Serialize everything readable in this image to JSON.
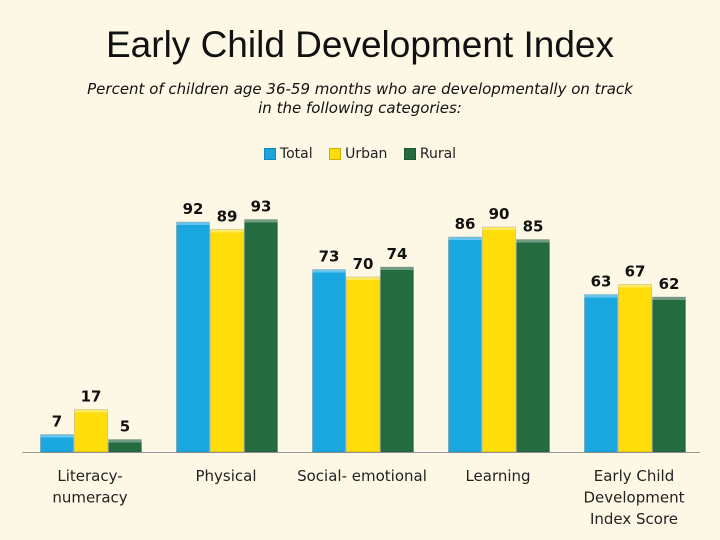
{
  "chart_data": {
    "type": "bar",
    "title": "Early Child Development Index",
    "subtitle_lines": [
      "Percent of children age 36-59 months who are developmentally on track",
      "in the following categories:"
    ],
    "categories": [
      [
        "Literacy-",
        "numeracy"
      ],
      [
        "Physical"
      ],
      [
        "Social- emotional"
      ],
      [
        "Learning"
      ],
      [
        "Early Child",
        "Development",
        "Index Score"
      ]
    ],
    "series": [
      {
        "name": "Total",
        "color": "#1aa7e0",
        "values": [
          7,
          92,
          73,
          86,
          63
        ]
      },
      {
        "name": "Urban",
        "color": "#fedd0a",
        "values": [
          17,
          89,
          70,
          90,
          67
        ]
      },
      {
        "name": "Rural",
        "color": "#256b40",
        "values": [
          5,
          93,
          74,
          85,
          62
        ]
      }
    ],
    "ylim": [
      0,
      100
    ],
    "grid": false,
    "legend_position": "top",
    "data_labels": true
  }
}
